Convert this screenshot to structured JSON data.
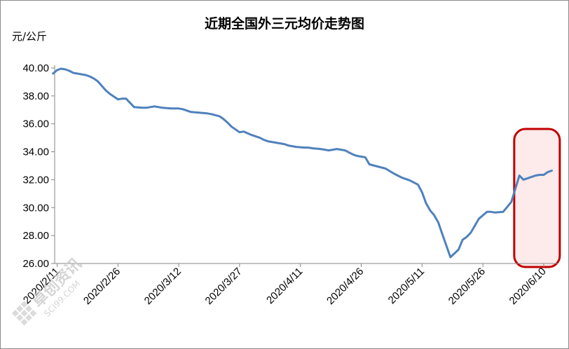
{
  "chart_data": {
    "type": "line",
    "title": "近期全国外三元均价走势图",
    "ylabel": "元/公斤",
    "xlabel": "",
    "ylim": [
      26,
      40
    ],
    "yticks": [
      "26.00",
      "28.00",
      "30.00",
      "32.00",
      "34.00",
      "36.00",
      "38.00",
      "40.00"
    ],
    "xticks": [
      "2020/2/11",
      "2020/2/26",
      "2020/3/12",
      "2020/3/27",
      "2020/4/11",
      "2020/4/26",
      "2020/5/11",
      "2020/5/26",
      "2020/6/10"
    ],
    "grid": false,
    "line_color": "#4f81bd",
    "series": [
      {
        "x": [
          "2020/2/10",
          "2020/2/11",
          "2020/2/12",
          "2020/2/13",
          "2020/2/14",
          "2020/2/15",
          "2020/2/17",
          "2020/2/18",
          "2020/2/19",
          "2020/2/20",
          "2020/2/21",
          "2020/2/23",
          "2020/2/24",
          "2020/2/26",
          "2020/2/27",
          "2020/2/28",
          "2020/3/1",
          "2020/3/3",
          "2020/3/4",
          "2020/3/5",
          "2020/3/6",
          "2020/3/8",
          "2020/3/10",
          "2020/3/12",
          "2020/3/13",
          "2020/3/15",
          "2020/3/17",
          "2020/3/19",
          "2020/3/20",
          "2020/3/22",
          "2020/3/23",
          "2020/3/24",
          "2020/3/25",
          "2020/3/27",
          "2020/3/28",
          "2020/3/30",
          "2020/4/1",
          "2020/4/2",
          "2020/4/3",
          "2020/4/5",
          "2020/4/7",
          "2020/4/8",
          "2020/4/10",
          "2020/4/12",
          "2020/4/13",
          "2020/4/14",
          "2020/4/16",
          "2020/4/18",
          "2020/4/20",
          "2020/4/22",
          "2020/4/23",
          "2020/4/24",
          "2020/4/25",
          "2020/4/27",
          "2020/4/28",
          "2020/4/30",
          "2020/5/2",
          "2020/5/4",
          "2020/5/6",
          "2020/5/8",
          "2020/5/9",
          "2020/5/10",
          "2020/5/11",
          "2020/5/12",
          "2020/5/13",
          "2020/5/14",
          "2020/5/15",
          "2020/5/16",
          "2020/5/18",
          "2020/5/20",
          "2020/5/21",
          "2020/5/22",
          "2020/5/23",
          "2020/5/25",
          "2020/5/27",
          "2020/5/28",
          "2020/5/29",
          "2020/5/31",
          "2020/6/2",
          "2020/6/4",
          "2020/6/5",
          "2020/6/6",
          "2020/6/8",
          "2020/6/9",
          "2020/6/10",
          "2020/6/11",
          "2020/6/12"
        ],
        "values": [
          39.6,
          39.85,
          39.95,
          39.9,
          39.8,
          39.65,
          39.55,
          39.5,
          39.4,
          39.25,
          39.05,
          38.4,
          38.15,
          37.75,
          37.8,
          37.8,
          37.2,
          37.15,
          37.15,
          37.2,
          37.25,
          37.15,
          37.1,
          37.1,
          37.05,
          36.85,
          36.8,
          36.75,
          36.7,
          36.55,
          36.35,
          36.1,
          35.8,
          35.4,
          35.45,
          35.2,
          35.0,
          34.85,
          34.75,
          34.65,
          34.55,
          34.45,
          34.35,
          34.3,
          34.3,
          34.25,
          34.2,
          34.1,
          34.2,
          34.1,
          33.95,
          33.8,
          33.7,
          33.6,
          33.1,
          32.95,
          32.8,
          32.45,
          32.15,
          31.95,
          31.8,
          31.65,
          31.1,
          30.3,
          29.8,
          29.45,
          28.95,
          28.1,
          26.45,
          27.0,
          27.7,
          27.9,
          28.2,
          29.2,
          29.7,
          29.7,
          29.65,
          29.7,
          30.4,
          32.3,
          32.0,
          32.1,
          32.3,
          32.35,
          32.35,
          32.55,
          32.65
        ]
      }
    ],
    "highlight_box": {
      "from": "2020/6/1",
      "to": "2020/6/15",
      "stroke": "#c00000",
      "fill": "#fdeaea"
    }
  },
  "watermark": {
    "text": "卓创资讯",
    "sub": "SCI99.COM"
  }
}
